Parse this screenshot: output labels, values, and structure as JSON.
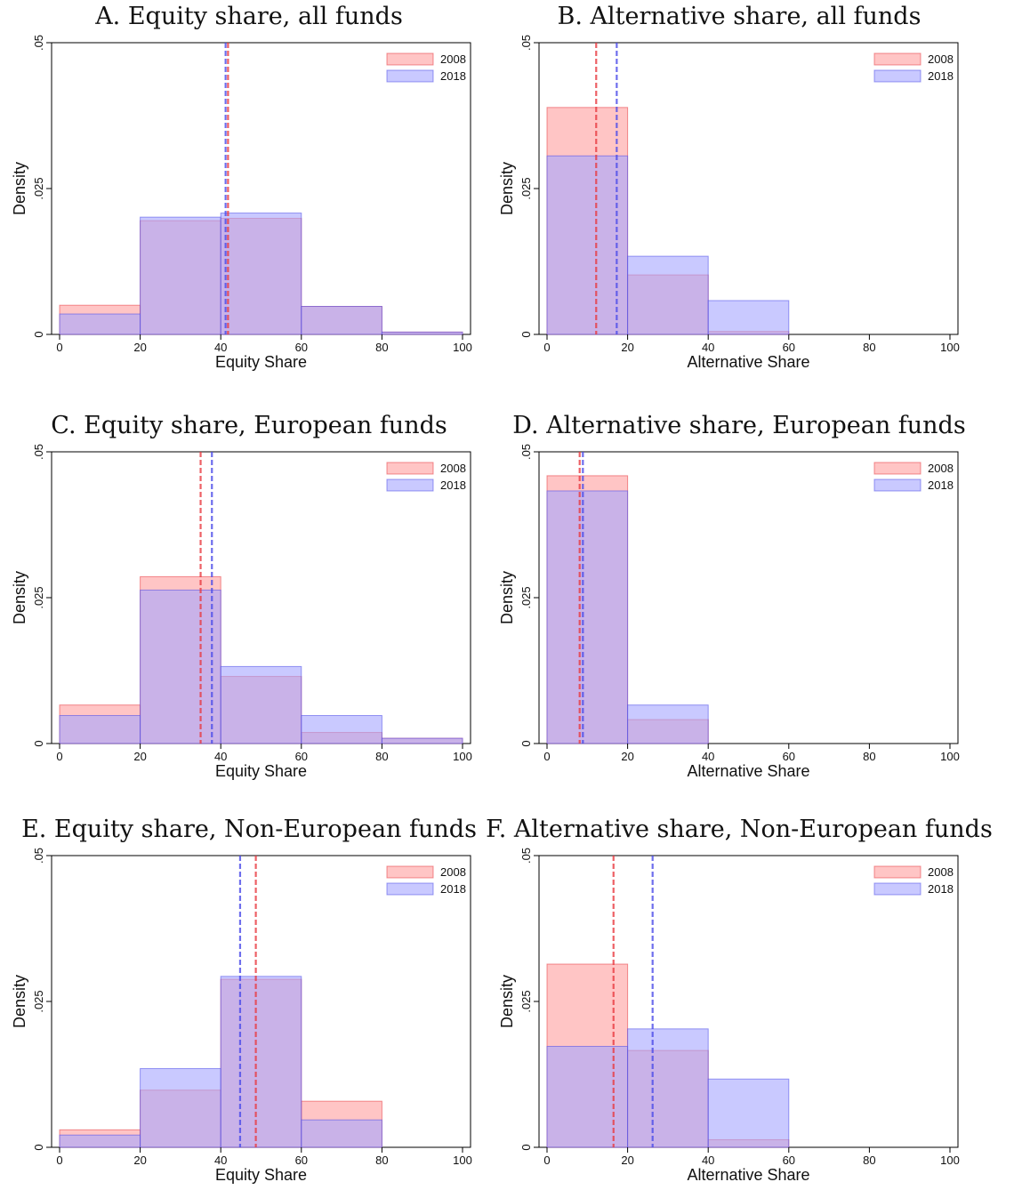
{
  "colors": {
    "y2008_fill": "#ff9e9e",
    "y2008_line": "#e8383e",
    "y2018_fill": "#a5a5ff",
    "y2018_line": "#4a4ae8",
    "overlap": "#c9a0d8"
  },
  "chart_data": [
    {
      "type": "bar",
      "title": "A. Equity share, all funds",
      "xlabel": "Equity Share",
      "ylabel": "Density",
      "xlim": [
        0,
        100
      ],
      "ylim": [
        0,
        0.05
      ],
      "xticks": [
        "0",
        "20",
        "40",
        "60",
        "80",
        "100"
      ],
      "yticks": [
        "0",
        ".025",
        ".05"
      ],
      "bin_edges": [
        0,
        20,
        40,
        60,
        80,
        100
      ],
      "series": [
        {
          "name": "2008",
          "values": [
            0.005,
            0.0195,
            0.0199,
            0.0048,
            0.0004
          ],
          "mean": 41.8
        },
        {
          "name": "2018",
          "values": [
            0.0035,
            0.0201,
            0.0208,
            0.0048,
            0.0004
          ],
          "mean": 41.2
        }
      ],
      "legend": "top-right"
    },
    {
      "type": "bar",
      "title": "B. Alternative share, all funds",
      "xlabel": "Alternative Share",
      "ylabel": "Density",
      "xlim": [
        0,
        100
      ],
      "ylim": [
        0,
        0.05
      ],
      "xticks": [
        "0",
        "20",
        "40",
        "60",
        "80",
        "100"
      ],
      "yticks": [
        "0",
        ".025",
        ".05"
      ],
      "bin_edges": [
        0,
        20,
        40,
        60,
        80,
        100
      ],
      "series": [
        {
          "name": "2008",
          "values": [
            0.0389,
            0.0102,
            0.0005,
            0,
            0
          ],
          "mean": 12.2
        },
        {
          "name": "2018",
          "values": [
            0.0306,
            0.0134,
            0.0058,
            0,
            0
          ],
          "mean": 17.3
        }
      ],
      "legend": "top-right"
    },
    {
      "type": "bar",
      "title": "C. Equity share, European funds",
      "xlabel": "Equity Share",
      "ylabel": "Density",
      "xlim": [
        0,
        100
      ],
      "ylim": [
        0,
        0.05
      ],
      "xticks": [
        "0",
        "20",
        "40",
        "60",
        "80",
        "100"
      ],
      "yticks": [
        "0",
        ".025",
        ".05"
      ],
      "bin_edges": [
        0,
        20,
        40,
        60,
        80,
        100
      ],
      "series": [
        {
          "name": "2008",
          "values": [
            0.0066,
            0.0286,
            0.0115,
            0.0019,
            0.0009
          ],
          "mean": 35.0
        },
        {
          "name": "2018",
          "values": [
            0.0048,
            0.0263,
            0.0132,
            0.0048,
            0.0009
          ],
          "mean": 37.8
        }
      ],
      "legend": "top-right"
    },
    {
      "type": "bar",
      "title": "D. Alternative share, European funds",
      "xlabel": "Alternative Share",
      "ylabel": "Density",
      "xlim": [
        0,
        100
      ],
      "ylim": [
        0,
        0.05
      ],
      "xticks": [
        "0",
        "20",
        "40",
        "60",
        "80",
        "100"
      ],
      "yticks": [
        "0",
        ".025",
        ".05"
      ],
      "bin_edges": [
        0,
        20,
        40,
        60,
        80,
        100
      ],
      "series": [
        {
          "name": "2008",
          "values": [
            0.0459,
            0.0041,
            0,
            0,
            0
          ],
          "mean": 8.1
        },
        {
          "name": "2018",
          "values": [
            0.0433,
            0.0066,
            0,
            0,
            0
          ],
          "mean": 8.9
        }
      ],
      "legend": "top-right"
    },
    {
      "type": "bar",
      "title": "E. Equity share, Non-European funds",
      "xlabel": "Equity Share",
      "ylabel": "Density",
      "xlim": [
        0,
        100
      ],
      "ylim": [
        0,
        0.05
      ],
      "xticks": [
        "0",
        "20",
        "40",
        "60",
        "80",
        "100"
      ],
      "yticks": [
        "0",
        ".025",
        ".05"
      ],
      "bin_edges": [
        0,
        20,
        40,
        60,
        80,
        100
      ],
      "series": [
        {
          "name": "2008",
          "values": [
            0.003,
            0.0098,
            0.0288,
            0.0079,
            0
          ],
          "mean": 48.7
        },
        {
          "name": "2018",
          "values": [
            0.0021,
            0.0135,
            0.0293,
            0.0047,
            0
          ],
          "mean": 44.8
        }
      ],
      "legend": "top-right"
    },
    {
      "type": "bar",
      "title": "F. Alternative share, Non-European funds",
      "xlabel": "Alternative Share",
      "ylabel": "Density",
      "xlim": [
        0,
        100
      ],
      "ylim": [
        0,
        0.05
      ],
      "xticks": [
        "0",
        "20",
        "40",
        "60",
        "80",
        "100"
      ],
      "yticks": [
        "0",
        ".025",
        ".05"
      ],
      "bin_edges": [
        0,
        20,
        40,
        60,
        80,
        100
      ],
      "series": [
        {
          "name": "2008",
          "values": [
            0.0314,
            0.0166,
            0.0013,
            0,
            0
          ],
          "mean": 16.5
        },
        {
          "name": "2018",
          "values": [
            0.0173,
            0.0203,
            0.0117,
            0,
            0
          ],
          "mean": 26.2
        }
      ],
      "legend": "top-right"
    }
  ]
}
